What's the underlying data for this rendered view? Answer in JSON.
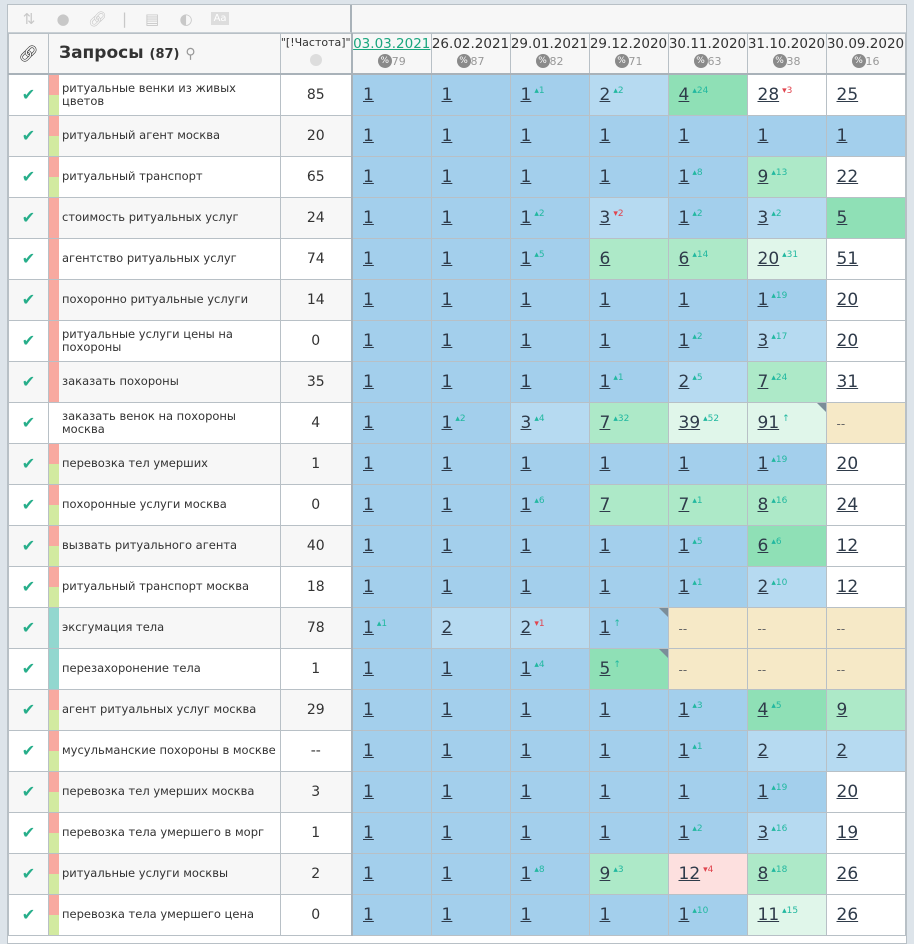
{
  "toolbar": {
    "icons": [
      "sort-icon",
      "toggle-icon",
      "link-icon",
      "window-icon",
      "contrast-icon",
      "text-icon"
    ]
  },
  "header": {
    "queries_label": "Запросы",
    "queries_count": "(87)",
    "freq_label": "\"[!Частота]\"",
    "dates": [
      {
        "d": "03.03.2021",
        "p": "79"
      },
      {
        "d": "26.02.2021",
        "p": "87"
      },
      {
        "d": "29.01.2021",
        "p": "82"
      },
      {
        "d": "29.12.2020",
        "p": "71"
      },
      {
        "d": "30.11.2020",
        "p": "63"
      },
      {
        "d": "31.10.2020",
        "p": "38"
      },
      {
        "d": "30.09.2020",
        "p": "16"
      }
    ],
    "pct_symbol": "%"
  },
  "colors": {
    "pink": "#f8a9a0",
    "green": "#d2eaa0",
    "teal": "#92d7cf",
    "check": "#27ae8a",
    "up": "#22b8a0",
    "down": "#e0454f"
  },
  "rows": [
    {
      "q": "ритуальные венки из живых цветов",
      "f": "85",
      "s": "pg",
      "c": [
        [
          "1",
          "",
          "",
          "b1"
        ],
        [
          "1",
          "",
          "",
          "b1"
        ],
        [
          "1",
          "1",
          "up",
          "b1"
        ],
        [
          "2",
          "2",
          "up",
          "b2"
        ],
        [
          "4",
          "24",
          "up",
          "g1"
        ],
        [
          "28",
          "3",
          "down",
          "w"
        ],
        [
          "25",
          "",
          "",
          "w"
        ]
      ]
    },
    {
      "q": "ритуальный агент москва",
      "f": "20",
      "s": "pg",
      "c": [
        [
          "1",
          "",
          "",
          "b1"
        ],
        [
          "1",
          "",
          "",
          "b1"
        ],
        [
          "1",
          "",
          "",
          "b1"
        ],
        [
          "1",
          "",
          "",
          "b1"
        ],
        [
          "1",
          "",
          "",
          "b1"
        ],
        [
          "1",
          "",
          "",
          "b1"
        ],
        [
          "1",
          "",
          "",
          "b1"
        ]
      ]
    },
    {
      "q": "ритуальный транспорт",
      "f": "65",
      "s": "pg",
      "c": [
        [
          "1",
          "",
          "",
          "b1"
        ],
        [
          "1",
          "",
          "",
          "b1"
        ],
        [
          "1",
          "",
          "",
          "b1"
        ],
        [
          "1",
          "",
          "",
          "b1"
        ],
        [
          "1",
          "8",
          "up",
          "b1"
        ],
        [
          "9",
          "13",
          "up",
          "g2"
        ],
        [
          "22",
          "",
          "",
          "w"
        ]
      ]
    },
    {
      "q": "стоимость ритуальных услуг",
      "f": "24",
      "s": "p",
      "c": [
        [
          "1",
          "",
          "",
          "b1"
        ],
        [
          "1",
          "",
          "",
          "b1"
        ],
        [
          "1",
          "2",
          "up",
          "b1"
        ],
        [
          "3",
          "2",
          "down",
          "b2"
        ],
        [
          "1",
          "2",
          "up",
          "b1"
        ],
        [
          "3",
          "2",
          "up",
          "b2"
        ],
        [
          "5",
          "",
          "",
          "g1"
        ]
      ]
    },
    {
      "q": "агентство ритуальных услуг",
      "f": "74",
      "s": "p",
      "c": [
        [
          "1",
          "",
          "",
          "b1"
        ],
        [
          "1",
          "",
          "",
          "b1"
        ],
        [
          "1",
          "5",
          "up",
          "b1"
        ],
        [
          "6",
          "",
          "",
          "g2"
        ],
        [
          "6",
          "14",
          "up",
          "g2"
        ],
        [
          "20",
          "31",
          "up",
          "g3"
        ],
        [
          "51",
          "",
          "",
          "w"
        ]
      ]
    },
    {
      "q": "похоронно ритуальные услуги",
      "f": "14",
      "s": "p",
      "c": [
        [
          "1",
          "",
          "",
          "b1"
        ],
        [
          "1",
          "",
          "",
          "b1"
        ],
        [
          "1",
          "",
          "",
          "b1"
        ],
        [
          "1",
          "",
          "",
          "b1"
        ],
        [
          "1",
          "",
          "",
          "b1"
        ],
        [
          "1",
          "19",
          "up",
          "b1"
        ],
        [
          "20",
          "",
          "",
          "w"
        ]
      ]
    },
    {
      "q": "ритуальные услуги цены на похороны",
      "f": "0",
      "s": "p",
      "c": [
        [
          "1",
          "",
          "",
          "b1"
        ],
        [
          "1",
          "",
          "",
          "b1"
        ],
        [
          "1",
          "",
          "",
          "b1"
        ],
        [
          "1",
          "",
          "",
          "b1"
        ],
        [
          "1",
          "2",
          "up",
          "b1"
        ],
        [
          "3",
          "17",
          "up",
          "b2"
        ],
        [
          "20",
          "",
          "",
          "w"
        ]
      ]
    },
    {
      "q": "заказать похороны",
      "f": "35",
      "s": "p",
      "c": [
        [
          "1",
          "",
          "",
          "b1"
        ],
        [
          "1",
          "",
          "",
          "b1"
        ],
        [
          "1",
          "",
          "",
          "b1"
        ],
        [
          "1",
          "1",
          "up",
          "b1"
        ],
        [
          "2",
          "5",
          "up",
          "b2"
        ],
        [
          "7",
          "24",
          "up",
          "g2"
        ],
        [
          "31",
          "",
          "",
          "w"
        ]
      ]
    },
    {
      "q": "заказать венок на похороны москва",
      "f": "4",
      "s": "n",
      "c": [
        [
          "1",
          "",
          "",
          "b1"
        ],
        [
          "1",
          "2",
          "up",
          "b1"
        ],
        [
          "3",
          "4",
          "up",
          "b2"
        ],
        [
          "7",
          "32",
          "up",
          "g2"
        ],
        [
          "39",
          "52",
          "up",
          "g3"
        ],
        [
          "91",
          "↑",
          "new",
          "g3",
          1
        ],
        [
          "--",
          "",
          "",
          "y"
        ]
      ]
    },
    {
      "q": "перевозка тел умерших",
      "f": "1",
      "s": "pg",
      "c": [
        [
          "1",
          "",
          "",
          "b1"
        ],
        [
          "1",
          "",
          "",
          "b1"
        ],
        [
          "1",
          "",
          "",
          "b1"
        ],
        [
          "1",
          "",
          "",
          "b1"
        ],
        [
          "1",
          "",
          "",
          "b1"
        ],
        [
          "1",
          "19",
          "up",
          "b1"
        ],
        [
          "20",
          "",
          "",
          "w"
        ]
      ]
    },
    {
      "q": "похоронные услуги москва",
      "f": "0",
      "s": "pg",
      "c": [
        [
          "1",
          "",
          "",
          "b1"
        ],
        [
          "1",
          "",
          "",
          "b1"
        ],
        [
          "1",
          "6",
          "up",
          "b1"
        ],
        [
          "7",
          "",
          "",
          "g2"
        ],
        [
          "7",
          "1",
          "up",
          "g2"
        ],
        [
          "8",
          "16",
          "up",
          "g2"
        ],
        [
          "24",
          "",
          "",
          "w"
        ]
      ]
    },
    {
      "q": "вызвать ритуального агента",
      "f": "40",
      "s": "pg",
      "c": [
        [
          "1",
          "",
          "",
          "b1"
        ],
        [
          "1",
          "",
          "",
          "b1"
        ],
        [
          "1",
          "",
          "",
          "b1"
        ],
        [
          "1",
          "",
          "",
          "b1"
        ],
        [
          "1",
          "5",
          "up",
          "b1"
        ],
        [
          "6",
          "6",
          "up",
          "g1"
        ],
        [
          "12",
          "",
          "",
          "w"
        ]
      ]
    },
    {
      "q": "ритуальный транспорт москва",
      "f": "18",
      "s": "pg",
      "c": [
        [
          "1",
          "",
          "",
          "b1"
        ],
        [
          "1",
          "",
          "",
          "b1"
        ],
        [
          "1",
          "",
          "",
          "b1"
        ],
        [
          "1",
          "",
          "",
          "b1"
        ],
        [
          "1",
          "1",
          "up",
          "b1"
        ],
        [
          "2",
          "10",
          "up",
          "b2"
        ],
        [
          "12",
          "",
          "",
          "w"
        ]
      ]
    },
    {
      "q": "эксгумация тела",
      "f": "78",
      "s": "t",
      "c": [
        [
          "1",
          "1",
          "up",
          "b1"
        ],
        [
          "2",
          "",
          "",
          "b2"
        ],
        [
          "2",
          "1",
          "down",
          "b2"
        ],
        [
          "1",
          "↑",
          "new",
          "b1",
          1
        ],
        [
          "--",
          "",
          "",
          "y"
        ],
        [
          "--",
          "",
          "",
          "y"
        ],
        [
          "--",
          "",
          "",
          "y"
        ]
      ]
    },
    {
      "q": "перезахоронение тела",
      "f": "1",
      "s": "t",
      "c": [
        [
          "1",
          "",
          "",
          "b1"
        ],
        [
          "1",
          "",
          "",
          "b1"
        ],
        [
          "1",
          "4",
          "up",
          "b1"
        ],
        [
          "5",
          "↑",
          "new",
          "g1",
          1
        ],
        [
          "--",
          "",
          "",
          "y"
        ],
        [
          "--",
          "",
          "",
          "y"
        ],
        [
          "--",
          "",
          "",
          "y"
        ]
      ]
    },
    {
      "q": "агент ритуальных услуг москва",
      "f": "29",
      "s": "pg",
      "c": [
        [
          "1",
          "",
          "",
          "b1"
        ],
        [
          "1",
          "",
          "",
          "b1"
        ],
        [
          "1",
          "",
          "",
          "b1"
        ],
        [
          "1",
          "",
          "",
          "b1"
        ],
        [
          "1",
          "3",
          "up",
          "b1"
        ],
        [
          "4",
          "5",
          "up",
          "g1"
        ],
        [
          "9",
          "",
          "",
          "g2"
        ]
      ]
    },
    {
      "q": "мусульманские похороны в москве",
      "f": "--",
      "s": "pg",
      "c": [
        [
          "1",
          "",
          "",
          "b1"
        ],
        [
          "1",
          "",
          "",
          "b1"
        ],
        [
          "1",
          "",
          "",
          "b1"
        ],
        [
          "1",
          "",
          "",
          "b1"
        ],
        [
          "1",
          "1",
          "up",
          "b1"
        ],
        [
          "2",
          "",
          "",
          "b2"
        ],
        [
          "2",
          "",
          "",
          "b2"
        ]
      ]
    },
    {
      "q": "перевозка тел умерших москва",
      "f": "3",
      "s": "pg",
      "c": [
        [
          "1",
          "",
          "",
          "b1"
        ],
        [
          "1",
          "",
          "",
          "b1"
        ],
        [
          "1",
          "",
          "",
          "b1"
        ],
        [
          "1",
          "",
          "",
          "b1"
        ],
        [
          "1",
          "",
          "",
          "b1"
        ],
        [
          "1",
          "19",
          "up",
          "b1"
        ],
        [
          "20",
          "",
          "",
          "w"
        ]
      ]
    },
    {
      "q": "перевозка тела умершего в морг",
      "f": "1",
      "s": "pg",
      "c": [
        [
          "1",
          "",
          "",
          "b1"
        ],
        [
          "1",
          "",
          "",
          "b1"
        ],
        [
          "1",
          "",
          "",
          "b1"
        ],
        [
          "1",
          "",
          "",
          "b1"
        ],
        [
          "1",
          "2",
          "up",
          "b1"
        ],
        [
          "3",
          "16",
          "up",
          "b2"
        ],
        [
          "19",
          "",
          "",
          "w"
        ]
      ]
    },
    {
      "q": "ритуальные услуги москвы",
      "f": "2",
      "s": "pg",
      "c": [
        [
          "1",
          "",
          "",
          "b1"
        ],
        [
          "1",
          "",
          "",
          "b1"
        ],
        [
          "1",
          "8",
          "up",
          "b1"
        ],
        [
          "9",
          "3",
          "up",
          "g2"
        ],
        [
          "12",
          "4",
          "down",
          "r"
        ],
        [
          "8",
          "18",
          "up",
          "g2"
        ],
        [
          "26",
          "",
          "",
          "w"
        ]
      ]
    },
    {
      "q": "перевозка тела умершего цена",
      "f": "0",
      "s": "pg",
      "c": [
        [
          "1",
          "",
          "",
          "b1"
        ],
        [
          "1",
          "",
          "",
          "b1"
        ],
        [
          "1",
          "",
          "",
          "b1"
        ],
        [
          "1",
          "",
          "",
          "b1"
        ],
        [
          "1",
          "10",
          "up",
          "b1"
        ],
        [
          "11",
          "15",
          "up",
          "g3"
        ],
        [
          "26",
          "",
          "",
          "w"
        ]
      ]
    }
  ]
}
